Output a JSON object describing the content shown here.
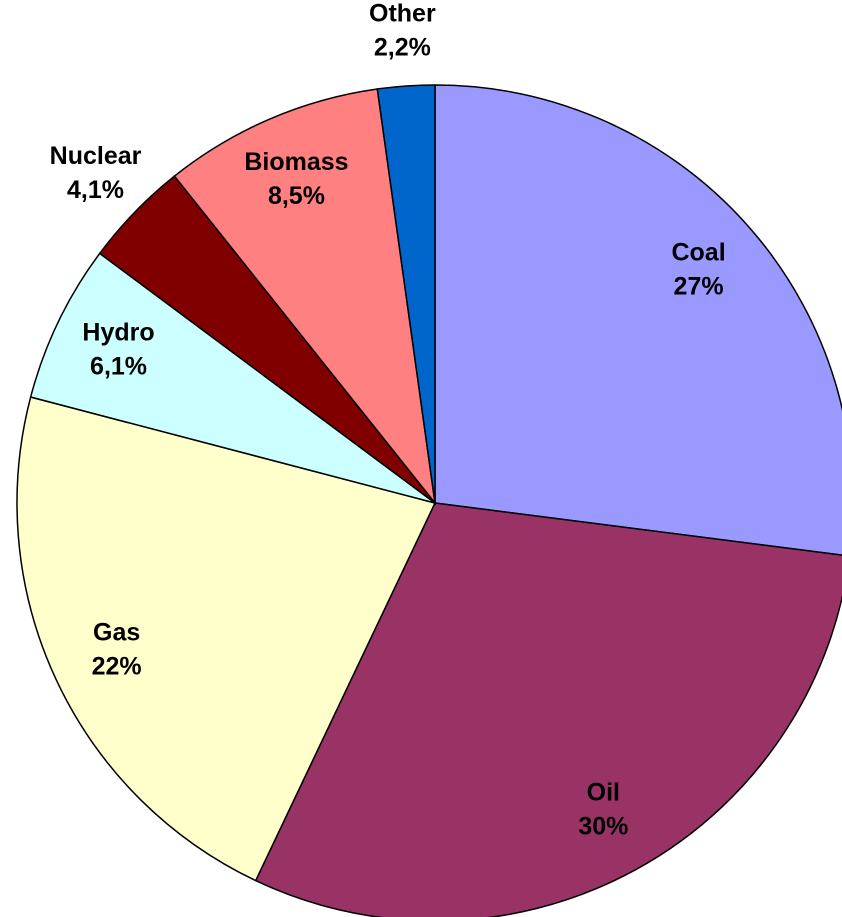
{
  "chart_data": {
    "type": "pie",
    "categories": [
      "Coal",
      "Oil",
      "Gas",
      "Hydro",
      "Nuclear",
      "Biomass",
      "Other"
    ],
    "values": [
      27,
      30,
      22,
      6.1,
      4.1,
      8.5,
      2.2
    ],
    "value_labels": [
      "27%",
      "30%",
      "22%",
      "6,1%",
      "4,1%",
      "8,5%",
      "2,2%"
    ],
    "colors": [
      "#9999ff",
      "#993366",
      "#ffffcc",
      "#ccffff",
      "#800000",
      "#ff8080",
      "#0066cc"
    ]
  }
}
